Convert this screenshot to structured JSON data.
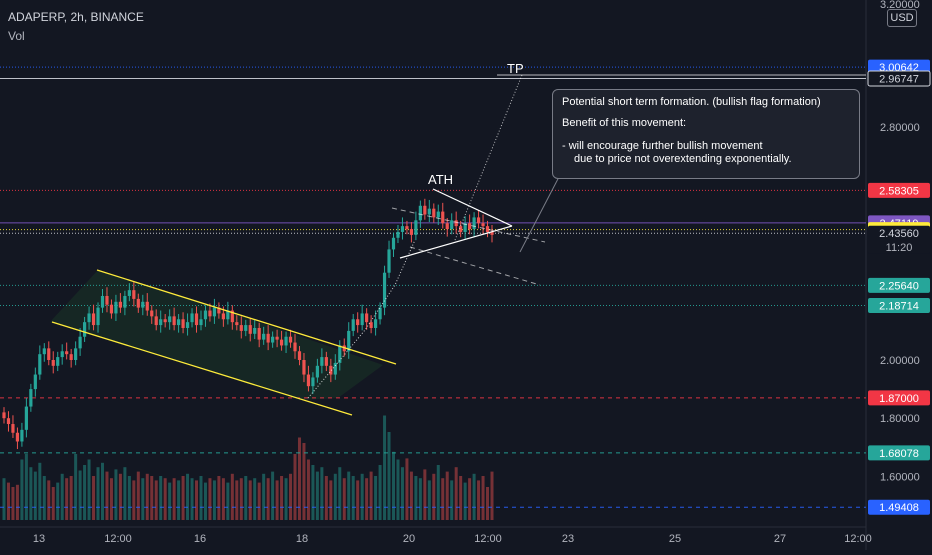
{
  "header": {
    "symbol": "ADAPERP, 2h, BINANCE",
    "indicator": "Vol"
  },
  "currency_button": "USD",
  "callout": {
    "title": "Potential short term formation. (bullish flag formation)",
    "subtitle": "Benefit of this movement:",
    "bullet_1": "-  will encourage further bullish movement",
    "bullet_2": "due to price not overextending exponentially."
  },
  "annotations": {
    "ath": "ATH",
    "tp": "TP"
  },
  "chart_data": {
    "type": "candlestick",
    "title": "ADAPERP, 2h, BINANCE",
    "y_axis_ticks": [
      "3.20000",
      "2.80000",
      "2.00000",
      "1.80000",
      "1.60000"
    ],
    "x_axis_ticks": [
      "13",
      "12:00",
      "16",
      "18",
      "20",
      "12:00",
      "23",
      "25",
      "27",
      "12:00"
    ],
    "price_levels": [
      {
        "value": 3.00642,
        "label": "3.00642",
        "color": "#2962ff",
        "style": "dotted"
      },
      {
        "value": 2.96747,
        "label": "2.96747",
        "color": "#d1d4dc",
        "style": "solid"
      },
      {
        "value": 2.58305,
        "label": "2.58305",
        "color": "#f23645",
        "style": "dotted"
      },
      {
        "value": 2.47119,
        "label": "2.47119",
        "color": "#7e57c2",
        "style": "solid"
      },
      {
        "value": 2.44792,
        "label": "2.44792",
        "color": "#ffeb3b",
        "style": "dotted"
      },
      {
        "value": 2.4356,
        "label": "2.43560",
        "color": "#d1d4dc",
        "style": "dotted",
        "countdown": "11:20"
      },
      {
        "value": 2.2564,
        "label": "2.25640",
        "color": "#26a69a",
        "style": "dotted"
      },
      {
        "value": 2.18714,
        "label": "2.18714",
        "color": "#26a69a",
        "style": "dotted"
      },
      {
        "value": 1.87,
        "label": "1.87000",
        "color": "#f23645",
        "style": "dashed"
      },
      {
        "value": 1.68078,
        "label": "1.68078",
        "color": "#26a69a",
        "style": "dashed"
      },
      {
        "value": 1.49408,
        "label": "1.49408",
        "color": "#2962ff",
        "style": "dashed"
      }
    ],
    "candles_close": [
      1.8,
      1.78,
      1.75,
      1.72,
      1.76,
      1.84,
      1.9,
      1.95,
      2.02,
      2.04,
      2.0,
      1.98,
      2.01,
      2.03,
      2.02,
      2.0,
      2.04,
      2.08,
      2.13,
      2.16,
      2.12,
      2.18,
      2.22,
      2.19,
      2.16,
      2.2,
      2.18,
      2.22,
      2.24,
      2.21,
      2.18,
      2.2,
      2.17,
      2.15,
      2.12,
      2.14,
      2.13,
      2.15,
      2.12,
      2.14,
      2.11,
      2.13,
      2.16,
      2.12,
      2.14,
      2.17,
      2.15,
      2.18,
      2.16,
      2.14,
      2.17,
      2.13,
      2.12,
      2.1,
      2.12,
      2.09,
      2.11,
      2.07,
      2.09,
      2.06,
      2.08,
      2.07,
      2.05,
      2.08,
      2.06,
      2.03,
      2.0,
      1.95,
      1.91,
      1.94,
      1.98,
      2.01,
      1.98,
      1.95,
      1.99,
      2.05,
      2.03,
      2.1,
      2.14,
      2.12,
      2.16,
      2.13,
      2.11,
      2.14,
      2.18,
      2.3,
      2.38,
      2.42,
      2.44,
      2.46,
      2.45,
      2.43,
      2.48,
      2.53,
      2.5,
      2.52,
      2.49,
      2.51,
      2.47,
      2.45,
      2.48,
      2.46,
      2.44,
      2.47,
      2.45,
      2.49,
      2.47,
      2.46,
      2.44,
      2.43
    ],
    "volume": [
      38,
      34,
      30,
      32,
      55,
      60,
      48,
      44,
      52,
      40,
      36,
      30,
      34,
      42,
      38,
      40,
      60,
      45,
      50,
      55,
      40,
      48,
      52,
      44,
      38,
      46,
      42,
      48,
      40,
      36,
      44,
      38,
      42,
      40,
      36,
      40,
      38,
      34,
      38,
      36,
      40,
      42,
      38,
      36,
      40,
      34,
      38,
      36,
      40,
      38,
      34,
      42,
      36,
      38,
      40,
      36,
      38,
      34,
      42,
      38,
      44,
      36,
      40,
      38,
      42,
      60,
      75,
      70,
      55,
      50,
      44,
      48,
      40,
      36,
      42,
      48,
      38,
      44,
      40,
      36,
      42,
      38,
      44,
      40,
      50,
      95,
      80,
      62,
      55,
      48,
      56,
      44,
      40,
      38,
      46,
      36,
      42,
      50,
      38,
      44,
      36,
      48,
      40,
      34,
      38,
      42,
      36,
      40,
      30,
      44
    ],
    "ylim": [
      1.45,
      3.2
    ]
  }
}
